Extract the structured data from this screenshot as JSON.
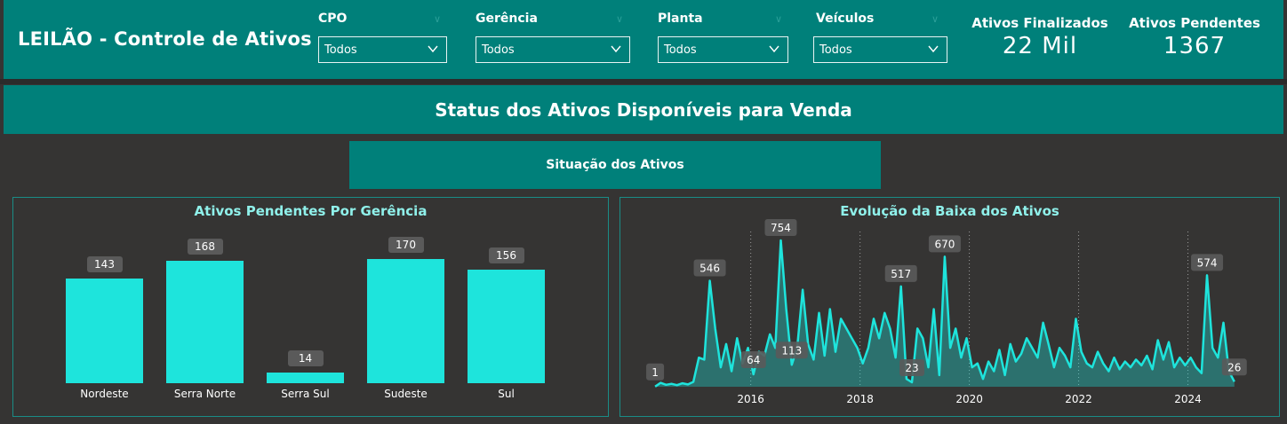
{
  "header": {
    "title": "LEILÃO - Controle de Ativos",
    "filters": [
      {
        "label": "CPO",
        "value": "Todos"
      },
      {
        "label": "Gerência",
        "value": "Todos"
      },
      {
        "label": "Planta",
        "value": "Todos"
      },
      {
        "label": "Veículos",
        "value": "Todos"
      }
    ],
    "kpis": [
      {
        "label": "Ativos Finalizados",
        "value": "22 Mil"
      },
      {
        "label": "Ativos Pendentes",
        "value": "1367"
      }
    ]
  },
  "banner": {
    "title": "Status dos Ativos Disponíveis para Venda"
  },
  "subbanner": {
    "label": "Situação dos Ativos"
  },
  "colors": {
    "teal": "#00807a",
    "accent": "#1ee4dc",
    "background": "#353433",
    "title_text": "#8ff0ea"
  },
  "chart_data": [
    {
      "type": "bar",
      "title": "Ativos Pendentes Por Gerência",
      "categories": [
        "Nordeste",
        "Serra Norte",
        "Serra Sul",
        "Sudeste",
        "Sul"
      ],
      "values": [
        143,
        168,
        14,
        170,
        156
      ],
      "ylim": [
        0,
        170
      ]
    },
    {
      "type": "area",
      "title": "Evolução da Baixa dos Ativos",
      "x_ticks": [
        "2016",
        "2018",
        "2020",
        "2022",
        "2024"
      ],
      "xlim": [
        2014.2,
        2025.0
      ],
      "ylim": [
        0,
        754
      ],
      "points": [
        [
          2014.25,
          1
        ],
        [
          2014.35,
          20
        ],
        [
          2014.45,
          10
        ],
        [
          2014.55,
          15
        ],
        [
          2014.65,
          8
        ],
        [
          2014.75,
          18
        ],
        [
          2014.85,
          12
        ],
        [
          2014.95,
          25
        ],
        [
          2015.05,
          150
        ],
        [
          2015.15,
          140
        ],
        [
          2015.25,
          546
        ],
        [
          2015.35,
          300
        ],
        [
          2015.45,
          100
        ],
        [
          2015.55,
          220
        ],
        [
          2015.65,
          80
        ],
        [
          2015.75,
          250
        ],
        [
          2015.85,
          120
        ],
        [
          2015.95,
          200
        ],
        [
          2016.05,
          64
        ],
        [
          2016.15,
          180
        ],
        [
          2016.25,
          160
        ],
        [
          2016.35,
          270
        ],
        [
          2016.45,
          200
        ],
        [
          2016.55,
          754
        ],
        [
          2016.65,
          400
        ],
        [
          2016.75,
          113
        ],
        [
          2016.85,
          200
        ],
        [
          2016.95,
          500
        ],
        [
          2017.05,
          220
        ],
        [
          2017.15,
          140
        ],
        [
          2017.25,
          380
        ],
        [
          2017.35,
          160
        ],
        [
          2017.45,
          400
        ],
        [
          2017.55,
          180
        ],
        [
          2017.65,
          350
        ],
        [
          2017.75,
          300
        ],
        [
          2017.85,
          250
        ],
        [
          2017.95,
          200
        ],
        [
          2018.05,
          120
        ],
        [
          2018.15,
          200
        ],
        [
          2018.25,
          350
        ],
        [
          2018.35,
          250
        ],
        [
          2018.45,
          380
        ],
        [
          2018.55,
          300
        ],
        [
          2018.65,
          150
        ],
        [
          2018.75,
          517
        ],
        [
          2018.85,
          40
        ],
        [
          2018.95,
          23
        ],
        [
          2019.05,
          300
        ],
        [
          2019.15,
          250
        ],
        [
          2019.25,
          100
        ],
        [
          2019.35,
          400
        ],
        [
          2019.45,
          60
        ],
        [
          2019.55,
          670
        ],
        [
          2019.65,
          200
        ],
        [
          2019.75,
          300
        ],
        [
          2019.85,
          150
        ],
        [
          2019.95,
          250
        ],
        [
          2020.05,
          100
        ],
        [
          2020.15,
          120
        ],
        [
          2020.25,
          40
        ],
        [
          2020.35,
          130
        ],
        [
          2020.45,
          80
        ],
        [
          2020.55,
          190
        ],
        [
          2020.65,
          60
        ],
        [
          2020.75,
          220
        ],
        [
          2020.85,
          130
        ],
        [
          2020.95,
          170
        ],
        [
          2021.05,
          250
        ],
        [
          2021.15,
          200
        ],
        [
          2021.25,
          150
        ],
        [
          2021.35,
          330
        ],
        [
          2021.45,
          220
        ],
        [
          2021.55,
          100
        ],
        [
          2021.65,
          200
        ],
        [
          2021.75,
          160
        ],
        [
          2021.85,
          100
        ],
        [
          2021.95,
          350
        ],
        [
          2022.05,
          180
        ],
        [
          2022.15,
          120
        ],
        [
          2022.25,
          100
        ],
        [
          2022.35,
          180
        ],
        [
          2022.45,
          120
        ],
        [
          2022.55,
          80
        ],
        [
          2022.65,
          150
        ],
        [
          2022.75,
          90
        ],
        [
          2022.85,
          130
        ],
        [
          2022.95,
          100
        ],
        [
          2023.05,
          140
        ],
        [
          2023.15,
          110
        ],
        [
          2023.25,
          160
        ],
        [
          2023.35,
          90
        ],
        [
          2023.45,
          240
        ],
        [
          2023.55,
          140
        ],
        [
          2023.65,
          230
        ],
        [
          2023.75,
          100
        ],
        [
          2023.85,
          150
        ],
        [
          2023.95,
          110
        ],
        [
          2024.05,
          150
        ],
        [
          2024.15,
          100
        ],
        [
          2024.25,
          70
        ],
        [
          2024.35,
          574
        ],
        [
          2024.45,
          200
        ],
        [
          2024.55,
          150
        ],
        [
          2024.65,
          330
        ],
        [
          2024.75,
          80
        ],
        [
          2024.85,
          26
        ]
      ],
      "data_labels": [
        {
          "x": 2014.25,
          "value": "1"
        },
        {
          "x": 2015.25,
          "value": "546"
        },
        {
          "x": 2016.05,
          "value": "64"
        },
        {
          "x": 2016.55,
          "value": "754"
        },
        {
          "x": 2016.75,
          "value": "113"
        },
        {
          "x": 2018.75,
          "value": "517"
        },
        {
          "x": 2018.95,
          "value": "23"
        },
        {
          "x": 2019.55,
          "value": "670"
        },
        {
          "x": 2024.35,
          "value": "574"
        },
        {
          "x": 2024.85,
          "value": "26"
        }
      ]
    }
  ]
}
